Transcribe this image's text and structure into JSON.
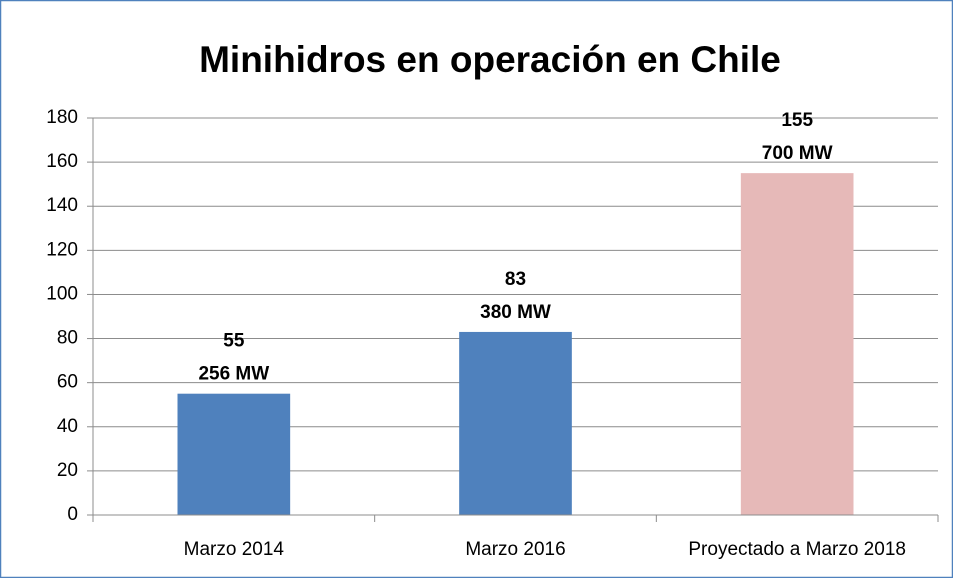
{
  "chart_data": {
    "type": "bar",
    "title": "Minihidros en operación en Chile",
    "categories": [
      "Marzo 2014",
      "Marzo 2016",
      "Proyectado a Marzo 2018"
    ],
    "values": [
      55,
      83,
      155
    ],
    "annotations": [
      "256 MW",
      "380 MW",
      "700 MW"
    ],
    "colors": [
      "#4f81bd",
      "#4f81bd",
      "#e6b9b8"
    ],
    "ylim": [
      0,
      180
    ],
    "yticks": [
      0,
      20,
      40,
      60,
      80,
      100,
      120,
      140,
      160,
      180
    ],
    "grid": true
  }
}
